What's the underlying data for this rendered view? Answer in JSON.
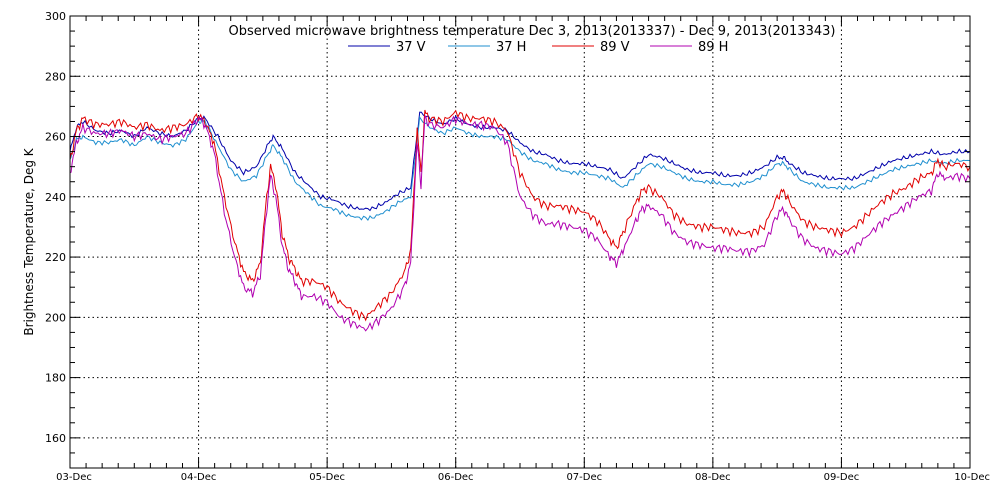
{
  "chart_data": {
    "type": "line",
    "title": "Observed microwave brightness temperature Dec  3, 2013(2013337) - Dec  9, 2013(2013343)",
    "xlabel": "",
    "ylabel": "Brightness Temperature, Deg K",
    "x_ticks": [
      "03-Dec",
      "04-Dec",
      "05-Dec",
      "06-Dec",
      "07-Dec",
      "08-Dec",
      "09-Dec",
      "10-Dec"
    ],
    "xlim": [
      0,
      7
    ],
    "ylim": [
      150,
      300
    ],
    "y_ticks": [
      160,
      180,
      200,
      220,
      240,
      260,
      280,
      300
    ],
    "grid": true,
    "legend": "top-center",
    "series": [
      {
        "name": "37 V",
        "color": "#0000aa",
        "points": [
          [
            0,
            255
          ],
          [
            0.05,
            263
          ],
          [
            0.1,
            265
          ],
          [
            0.2,
            262
          ],
          [
            0.3,
            261
          ],
          [
            0.4,
            262
          ],
          [
            0.5,
            260
          ],
          [
            0.6,
            263
          ],
          [
            0.7,
            261
          ],
          [
            0.8,
            260
          ],
          [
            0.9,
            262
          ],
          [
            1.0,
            266
          ],
          [
            1.05,
            266
          ],
          [
            1.15,
            260
          ],
          [
            1.25,
            252
          ],
          [
            1.35,
            248
          ],
          [
            1.45,
            250
          ],
          [
            1.55,
            258
          ],
          [
            1.58,
            260
          ],
          [
            1.65,
            256
          ],
          [
            1.75,
            248
          ],
          [
            1.85,
            244
          ],
          [
            1.95,
            240
          ],
          [
            2.05,
            239
          ],
          [
            2.15,
            237
          ],
          [
            2.25,
            236
          ],
          [
            2.35,
            236
          ],
          [
            2.45,
            238
          ],
          [
            2.55,
            241
          ],
          [
            2.65,
            243
          ],
          [
            2.72,
            268
          ],
          [
            2.8,
            266
          ],
          [
            2.9,
            264
          ],
          [
            3.0,
            266
          ],
          [
            3.1,
            264
          ],
          [
            3.2,
            263
          ],
          [
            3.3,
            263
          ],
          [
            3.4,
            262
          ],
          [
            3.5,
            258
          ],
          [
            3.6,
            255
          ],
          [
            3.7,
            254
          ],
          [
            3.8,
            252
          ],
          [
            3.9,
            251
          ],
          [
            4.0,
            251
          ],
          [
            4.1,
            250
          ],
          [
            4.2,
            249
          ],
          [
            4.3,
            246
          ],
          [
            4.4,
            250
          ],
          [
            4.5,
            254
          ],
          [
            4.6,
            253
          ],
          [
            4.7,
            251
          ],
          [
            4.8,
            249
          ],
          [
            4.9,
            248
          ],
          [
            5.0,
            248
          ],
          [
            5.1,
            247
          ],
          [
            5.2,
            247
          ],
          [
            5.3,
            248
          ],
          [
            5.4,
            250
          ],
          [
            5.5,
            253
          ],
          [
            5.55,
            253
          ],
          [
            5.6,
            251
          ],
          [
            5.7,
            248
          ],
          [
            5.8,
            247
          ],
          [
            5.9,
            246
          ],
          [
            6.0,
            246
          ],
          [
            6.1,
            246
          ],
          [
            6.2,
            248
          ],
          [
            6.3,
            250
          ],
          [
            6.4,
            252
          ],
          [
            6.5,
            253
          ],
          [
            6.6,
            254
          ],
          [
            6.7,
            255
          ],
          [
            6.8,
            254
          ],
          [
            6.9,
            255
          ],
          [
            7.0,
            255
          ]
        ]
      },
      {
        "name": "37 H",
        "color": "#1f8fcf",
        "points": [
          [
            0,
            252
          ],
          [
            0.05,
            259
          ],
          [
            0.1,
            260
          ],
          [
            0.2,
            258
          ],
          [
            0.3,
            258
          ],
          [
            0.4,
            259
          ],
          [
            0.5,
            257
          ],
          [
            0.6,
            260
          ],
          [
            0.7,
            258
          ],
          [
            0.8,
            257
          ],
          [
            0.9,
            259
          ],
          [
            1.0,
            265
          ],
          [
            1.05,
            265
          ],
          [
            1.15,
            257
          ],
          [
            1.25,
            249
          ],
          [
            1.35,
            245
          ],
          [
            1.45,
            247
          ],
          [
            1.55,
            255
          ],
          [
            1.58,
            257
          ],
          [
            1.65,
            253
          ],
          [
            1.75,
            245
          ],
          [
            1.85,
            241
          ],
          [
            1.95,
            237
          ],
          [
            2.05,
            236
          ],
          [
            2.15,
            234
          ],
          [
            2.25,
            233
          ],
          [
            2.35,
            233
          ],
          [
            2.45,
            235
          ],
          [
            2.55,
            238
          ],
          [
            2.65,
            240
          ],
          [
            2.72,
            266
          ],
          [
            2.8,
            263
          ],
          [
            2.9,
            261
          ],
          [
            3.0,
            263
          ],
          [
            3.1,
            261
          ],
          [
            3.2,
            260
          ],
          [
            3.3,
            260
          ],
          [
            3.4,
            259
          ],
          [
            3.5,
            255
          ],
          [
            3.6,
            252
          ],
          [
            3.7,
            251
          ],
          [
            3.8,
            249
          ],
          [
            3.9,
            248
          ],
          [
            4.0,
            248
          ],
          [
            4.1,
            247
          ],
          [
            4.2,
            246
          ],
          [
            4.3,
            243
          ],
          [
            4.4,
            247
          ],
          [
            4.5,
            251
          ],
          [
            4.6,
            250
          ],
          [
            4.7,
            248
          ],
          [
            4.8,
            246
          ],
          [
            4.9,
            245
          ],
          [
            5.0,
            245
          ],
          [
            5.1,
            244
          ],
          [
            5.2,
            244
          ],
          [
            5.3,
            245
          ],
          [
            5.4,
            247
          ],
          [
            5.5,
            251
          ],
          [
            5.55,
            251
          ],
          [
            5.6,
            249
          ],
          [
            5.7,
            245
          ],
          [
            5.8,
            244
          ],
          [
            5.9,
            243
          ],
          [
            6.0,
            243
          ],
          [
            6.1,
            243
          ],
          [
            6.2,
            245
          ],
          [
            6.3,
            247
          ],
          [
            6.4,
            249
          ],
          [
            6.5,
            250
          ],
          [
            6.6,
            251
          ],
          [
            6.7,
            252
          ],
          [
            6.8,
            251
          ],
          [
            6.9,
            252
          ],
          [
            7.0,
            252
          ]
        ]
      },
      {
        "name": "89 V",
        "color": "#e00000",
        "points": [
          [
            0,
            252
          ],
          [
            0.05,
            262
          ],
          [
            0.1,
            266
          ],
          [
            0.2,
            264
          ],
          [
            0.3,
            264
          ],
          [
            0.4,
            265
          ],
          [
            0.5,
            263
          ],
          [
            0.6,
            264
          ],
          [
            0.7,
            262
          ],
          [
            0.8,
            263
          ],
          [
            0.9,
            264
          ],
          [
            1.0,
            267
          ],
          [
            1.05,
            265
          ],
          [
            1.12,
            258
          ],
          [
            1.2,
            240
          ],
          [
            1.28,
            225
          ],
          [
            1.35,
            215
          ],
          [
            1.42,
            212
          ],
          [
            1.48,
            218
          ],
          [
            1.53,
            240
          ],
          [
            1.56,
            250
          ],
          [
            1.6,
            244
          ],
          [
            1.65,
            228
          ],
          [
            1.7,
            220
          ],
          [
            1.75,
            216
          ],
          [
            1.8,
            212
          ],
          [
            1.9,
            212
          ],
          [
            2.0,
            210
          ],
          [
            2.1,
            205
          ],
          [
            2.2,
            202
          ],
          [
            2.3,
            200
          ],
          [
            2.4,
            204
          ],
          [
            2.5,
            208
          ],
          [
            2.6,
            215
          ],
          [
            2.65,
            222
          ],
          [
            2.7,
            262
          ],
          [
            2.73,
            248
          ],
          [
            2.76,
            268
          ],
          [
            2.8,
            266
          ],
          [
            2.9,
            265
          ],
          [
            3.0,
            268
          ],
          [
            3.1,
            266
          ],
          [
            3.2,
            266
          ],
          [
            3.3,
            265
          ],
          [
            3.4,
            262
          ],
          [
            3.5,
            248
          ],
          [
            3.6,
            240
          ],
          [
            3.7,
            237
          ],
          [
            3.8,
            237
          ],
          [
            3.9,
            236
          ],
          [
            4.0,
            235
          ],
          [
            4.1,
            232
          ],
          [
            4.2,
            226
          ],
          [
            4.25,
            223
          ],
          [
            4.3,
            228
          ],
          [
            4.4,
            238
          ],
          [
            4.45,
            242
          ],
          [
            4.5,
            243
          ],
          [
            4.6,
            240
          ],
          [
            4.7,
            234
          ],
          [
            4.8,
            231
          ],
          [
            4.9,
            230
          ],
          [
            5.0,
            230
          ],
          [
            5.1,
            229
          ],
          [
            5.2,
            228
          ],
          [
            5.3,
            228
          ],
          [
            5.4,
            230
          ],
          [
            5.5,
            240
          ],
          [
            5.55,
            242
          ],
          [
            5.6,
            238
          ],
          [
            5.7,
            232
          ],
          [
            5.8,
            230
          ],
          [
            5.9,
            229
          ],
          [
            6.0,
            228
          ],
          [
            6.1,
            230
          ],
          [
            6.2,
            234
          ],
          [
            6.3,
            238
          ],
          [
            6.4,
            241
          ],
          [
            6.5,
            243
          ],
          [
            6.6,
            246
          ],
          [
            6.7,
            248
          ],
          [
            6.75,
            252
          ],
          [
            6.8,
            250
          ],
          [
            6.9,
            251
          ],
          [
            7.0,
            250
          ]
        ]
      },
      {
        "name": "89 H",
        "color": "#b000b0",
        "points": [
          [
            0,
            248
          ],
          [
            0.05,
            258
          ],
          [
            0.1,
            263
          ],
          [
            0.2,
            261
          ],
          [
            0.3,
            261
          ],
          [
            0.4,
            262
          ],
          [
            0.5,
            260
          ],
          [
            0.6,
            261
          ],
          [
            0.7,
            259
          ],
          [
            0.8,
            260
          ],
          [
            0.9,
            261
          ],
          [
            1.0,
            266
          ],
          [
            1.05,
            264
          ],
          [
            1.12,
            255
          ],
          [
            1.2,
            235
          ],
          [
            1.28,
            220
          ],
          [
            1.35,
            210
          ],
          [
            1.42,
            208
          ],
          [
            1.48,
            214
          ],
          [
            1.53,
            236
          ],
          [
            1.56,
            247
          ],
          [
            1.6,
            240
          ],
          [
            1.65,
            224
          ],
          [
            1.7,
            216
          ],
          [
            1.75,
            212
          ],
          [
            1.8,
            207
          ],
          [
            1.9,
            207
          ],
          [
            2.0,
            205
          ],
          [
            2.1,
            200
          ],
          [
            2.2,
            198
          ],
          [
            2.3,
            196
          ],
          [
            2.4,
            199
          ],
          [
            2.5,
            203
          ],
          [
            2.6,
            210
          ],
          [
            2.65,
            218
          ],
          [
            2.7,
            258
          ],
          [
            2.73,
            244
          ],
          [
            2.76,
            266
          ],
          [
            2.8,
            264
          ],
          [
            2.9,
            263
          ],
          [
            3.0,
            266
          ],
          [
            3.1,
            264
          ],
          [
            3.2,
            264
          ],
          [
            3.3,
            263
          ],
          [
            3.4,
            258
          ],
          [
            3.5,
            240
          ],
          [
            3.6,
            234
          ],
          [
            3.7,
            231
          ],
          [
            3.8,
            231
          ],
          [
            3.9,
            230
          ],
          [
            4.0,
            229
          ],
          [
            4.1,
            226
          ],
          [
            4.2,
            220
          ],
          [
            4.25,
            218
          ],
          [
            4.3,
            222
          ],
          [
            4.4,
            232
          ],
          [
            4.45,
            236
          ],
          [
            4.5,
            237
          ],
          [
            4.6,
            234
          ],
          [
            4.7,
            228
          ],
          [
            4.8,
            225
          ],
          [
            4.9,
            224
          ],
          [
            5.0,
            223
          ],
          [
            5.1,
            223
          ],
          [
            5.2,
            222
          ],
          [
            5.3,
            222
          ],
          [
            5.4,
            224
          ],
          [
            5.5,
            234
          ],
          [
            5.55,
            236
          ],
          [
            5.6,
            232
          ],
          [
            5.7,
            226
          ],
          [
            5.8,
            223
          ],
          [
            5.9,
            222
          ],
          [
            6.0,
            221
          ],
          [
            6.1,
            223
          ],
          [
            6.2,
            227
          ],
          [
            6.3,
            231
          ],
          [
            6.4,
            234
          ],
          [
            6.5,
            237
          ],
          [
            6.6,
            240
          ],
          [
            6.7,
            242
          ],
          [
            6.75,
            248
          ],
          [
            6.8,
            246
          ],
          [
            6.9,
            247
          ],
          [
            7.0,
            246
          ]
        ]
      }
    ]
  }
}
